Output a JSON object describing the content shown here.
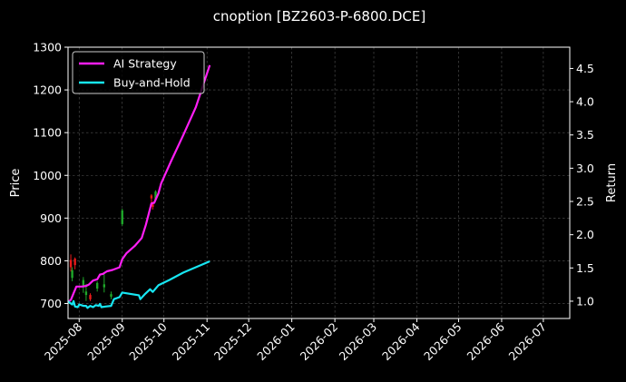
{
  "chart_data": {
    "type": "line",
    "title": "cnoption [BZ2603-P-6800.DCE]",
    "ylabel_left": "Price",
    "ylabel_right": "Return",
    "x_axis": {
      "type": "date",
      "range": [
        "2025-07-24",
        "2026-07-20"
      ],
      "ticks": [
        "2025-08",
        "2025-09",
        "2025-10",
        "2025-11",
        "2025-12",
        "2026-01",
        "2026-02",
        "2026-03",
        "2026-04",
        "2026-05",
        "2026-06",
        "2026-07"
      ]
    },
    "y_left": {
      "range": [
        665,
        1300
      ],
      "ticks": [
        700,
        800,
        900,
        1000,
        1100,
        1200,
        1300
      ]
    },
    "y_right": {
      "range": [
        0.74,
        4.82
      ],
      "ticks": [
        1.0,
        1.5,
        2.0,
        2.5,
        3.0,
        3.5,
        4.0,
        4.5
      ]
    },
    "grid": true,
    "legend_position": "top-left",
    "background": "#000000",
    "series": [
      {
        "name": "AI Strategy",
        "axis": "right",
        "color": "#ff1ef5",
        "points": [
          [
            "2025-07-24",
            0.99
          ],
          [
            "2025-07-26",
            1.02
          ],
          [
            "2025-07-28",
            1.12
          ],
          [
            "2025-07-30",
            1.22
          ],
          [
            "2025-08-03",
            1.22
          ],
          [
            "2025-08-06",
            1.23
          ],
          [
            "2025-08-08",
            1.25
          ],
          [
            "2025-08-11",
            1.31
          ],
          [
            "2025-08-14",
            1.33
          ],
          [
            "2025-08-16",
            1.4
          ],
          [
            "2025-08-18",
            1.41
          ],
          [
            "2025-08-21",
            1.45
          ],
          [
            "2025-08-25",
            1.47
          ],
          [
            "2025-08-30",
            1.51
          ],
          [
            "2025-09-01",
            1.63
          ],
          [
            "2025-09-04",
            1.72
          ],
          [
            "2025-09-10",
            1.83
          ],
          [
            "2025-09-15",
            1.95
          ],
          [
            "2025-09-18",
            2.15
          ],
          [
            "2025-09-22",
            2.47
          ],
          [
            "2025-09-24",
            2.48
          ],
          [
            "2025-09-27",
            2.62
          ],
          [
            "2025-09-29",
            2.77
          ],
          [
            "2025-10-06",
            3.1
          ],
          [
            "2025-10-15",
            3.5
          ],
          [
            "2025-10-24",
            3.92
          ],
          [
            "2025-11-03",
            4.55
          ]
        ]
      },
      {
        "name": "Buy-and-Hold",
        "axis": "right",
        "color": "#17e6f2",
        "points": [
          [
            "2025-07-24",
            1.0
          ],
          [
            "2025-07-25",
            0.98
          ],
          [
            "2025-07-27",
            0.95
          ],
          [
            "2025-07-28",
            1.0
          ],
          [
            "2025-07-29",
            0.92
          ],
          [
            "2025-07-31",
            0.91
          ],
          [
            "2025-08-01",
            0.95
          ],
          [
            "2025-08-04",
            0.93
          ],
          [
            "2025-08-06",
            0.93
          ],
          [
            "2025-08-07",
            0.9
          ],
          [
            "2025-08-09",
            0.93
          ],
          [
            "2025-08-11",
            0.91
          ],
          [
            "2025-08-13",
            0.94
          ],
          [
            "2025-08-15",
            0.93
          ],
          [
            "2025-08-16",
            0.96
          ],
          [
            "2025-08-17",
            0.91
          ],
          [
            "2025-08-20",
            0.92
          ],
          [
            "2025-08-24",
            0.93
          ],
          [
            "2025-08-26",
            1.03
          ],
          [
            "2025-08-30",
            1.06
          ],
          [
            "2025-09-01",
            1.13
          ],
          [
            "2025-09-04",
            1.12
          ],
          [
            "2025-09-13",
            1.09
          ],
          [
            "2025-09-14",
            1.03
          ],
          [
            "2025-09-17",
            1.1
          ],
          [
            "2025-09-21",
            1.18
          ],
          [
            "2025-09-23",
            1.14
          ],
          [
            "2025-09-27",
            1.24
          ],
          [
            "2025-10-05",
            1.32
          ],
          [
            "2025-10-15",
            1.43
          ],
          [
            "2025-11-03",
            1.6
          ]
        ]
      }
    ],
    "candles": [
      {
        "date": "2025-07-26",
        "open": 802,
        "close": 785,
        "high": 815,
        "low": 775
      },
      {
        "date": "2025-07-27",
        "open": 760,
        "close": 778,
        "high": 785,
        "low": 752
      },
      {
        "date": "2025-07-29",
        "open": 805,
        "close": 790,
        "high": 808,
        "low": 780
      },
      {
        "date": "2025-08-04",
        "open": 738,
        "close": 755,
        "high": 762,
        "low": 725
      },
      {
        "date": "2025-08-06",
        "open": 720,
        "close": 728,
        "high": 746,
        "low": 706
      },
      {
        "date": "2025-08-09",
        "open": 720,
        "close": 710,
        "high": 724,
        "low": 706
      },
      {
        "date": "2025-08-14",
        "open": 735,
        "close": 748,
        "high": 752,
        "low": 728
      },
      {
        "date": "2025-08-19",
        "open": 738,
        "close": 745,
        "high": 770,
        "low": 726
      },
      {
        "date": "2025-08-24",
        "open": 716,
        "close": 722,
        "high": 728,
        "low": 710
      },
      {
        "date": "2025-09-01",
        "open": 886,
        "close": 918,
        "high": 922,
        "low": 882
      },
      {
        "date": "2025-09-22",
        "open": 953,
        "close": 946,
        "high": 956,
        "low": 934
      },
      {
        "date": "2025-09-23",
        "open": 932,
        "close": 926,
        "high": 938,
        "low": 920
      },
      {
        "date": "2025-09-25",
        "open": 944,
        "close": 962,
        "high": 965,
        "low": 940
      }
    ],
    "candle_colors": {
      "up": "#1fa82a",
      "down": "#e81a1a"
    }
  }
}
